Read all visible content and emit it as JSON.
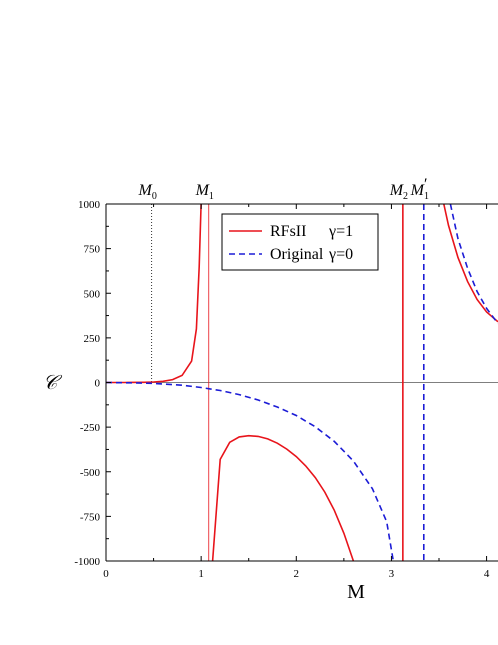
{
  "chart_data": {
    "type": "line",
    "title": "",
    "xlabel": "M",
    "ylabel": "𝒞",
    "xlim": [
      0,
      4.12
    ],
    "ylim": [
      -1000,
      1000
    ],
    "xticks": [
      0,
      1,
      2,
      3,
      4
    ],
    "xtick_labels": [
      "0",
      "1",
      "2",
      "3",
      "4"
    ],
    "yticks": [
      -1000,
      -750,
      -500,
      -250,
      0,
      250,
      500,
      750,
      1000
    ],
    "ytick_labels": [
      "-1000",
      "-750",
      "-500",
      "-250",
      "0",
      "250",
      "500",
      "750",
      "1000"
    ],
    "grid": false,
    "legend_position": "top-center",
    "colors": {
      "rfsii": "#e8141b",
      "original": "#1c1cd6",
      "reference": "#000000"
    },
    "series": [
      {
        "name": "RFsII",
        "param": "γ=1",
        "style": "solid",
        "color": "#e8141b",
        "segments": [
          [
            [
              0,
              0
            ],
            [
              0.2,
              0.1
            ],
            [
              0.4,
              1
            ],
            [
              0.5,
              3
            ],
            [
              0.6,
              7
            ],
            [
              0.7,
              16
            ],
            [
              0.8,
              40
            ],
            [
              0.9,
              120
            ],
            [
              0.95,
              300
            ],
            [
              0.98,
              650
            ],
            [
              1.0,
              1000
            ]
          ],
          [
            [
              1.12,
              -1000
            ],
            [
              1.2,
              -430
            ],
            [
              1.3,
              -335
            ],
            [
              1.4,
              -305
            ],
            [
              1.5,
              -298
            ],
            [
              1.6,
              -302
            ],
            [
              1.7,
              -316
            ],
            [
              1.8,
              -340
            ],
            [
              1.9,
              -373
            ],
            [
              2.0,
              -415
            ],
            [
              2.1,
              -468
            ],
            [
              2.2,
              -533
            ],
            [
              2.3,
              -614
            ],
            [
              2.4,
              -716
            ],
            [
              2.5,
              -845
            ],
            [
              2.6,
              -1000
            ]
          ],
          [
            [
              3.55,
              1000
            ],
            [
              3.6,
              880
            ],
            [
              3.7,
              700
            ],
            [
              3.8,
              565
            ],
            [
              3.9,
              465
            ],
            [
              4.0,
              395
            ],
            [
              4.12,
              340
            ]
          ]
        ]
      },
      {
        "name": "Original",
        "param": "γ=0",
        "style": "dashed",
        "color": "#1c1cd6",
        "segments": [
          [
            [
              0,
              0
            ],
            [
              0.3,
              -2
            ],
            [
              0.5,
              -5
            ],
            [
              0.8,
              -15
            ],
            [
              1.0,
              -28
            ],
            [
              1.2,
              -45
            ],
            [
              1.4,
              -68
            ],
            [
              1.6,
              -98
            ],
            [
              1.8,
              -137
            ],
            [
              2.0,
              -185
            ],
            [
              2.2,
              -248
            ],
            [
              2.4,
              -330
            ],
            [
              2.6,
              -440
            ],
            [
              2.8,
              -595
            ],
            [
              2.95,
              -780
            ],
            [
              3.02,
              -1000
            ]
          ],
          [
            [
              3.62,
              1000
            ],
            [
              3.7,
              805
            ],
            [
              3.8,
              640
            ],
            [
              3.9,
              510
            ],
            [
              4.0,
              415
            ],
            [
              4.12,
              330
            ]
          ]
        ]
      }
    ],
    "reference_lines": [
      {
        "label": "M",
        "sub": "0",
        "prime": "",
        "x": 0.48,
        "color": "#000000",
        "style": "dotted"
      },
      {
        "label": "M",
        "sub": "1",
        "prime": "",
        "x": 1.08,
        "color": "#e8141b",
        "style": "thin"
      },
      {
        "label": "M",
        "sub": "2",
        "prime": "",
        "x": 3.12,
        "color": "#e8141b",
        "style": "solid"
      },
      {
        "label": "M",
        "sub": "1",
        "prime": "′",
        "x": 3.34,
        "color": "#1c1cd6",
        "style": "dashed"
      }
    ],
    "zero_line": 0
  }
}
